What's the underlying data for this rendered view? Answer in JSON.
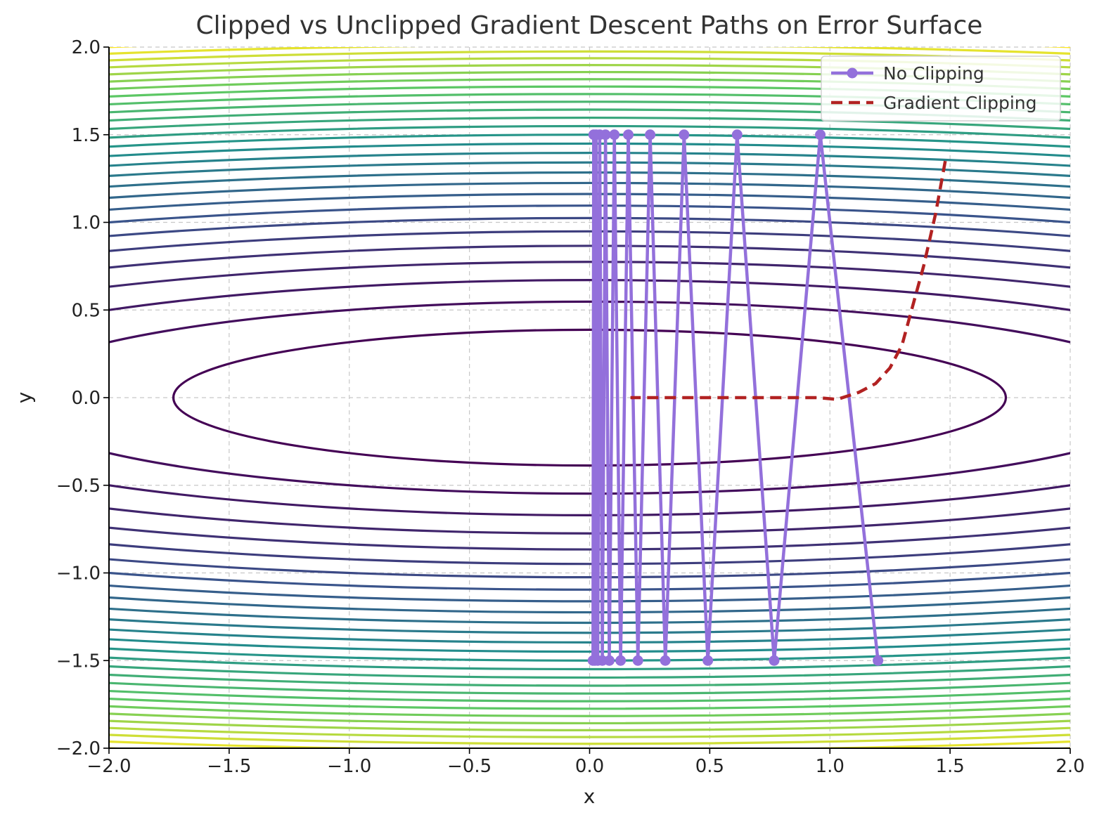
{
  "chart_data": {
    "type": "line",
    "title": "Clipped vs Unclipped Gradient Descent Paths on Error Surface",
    "xlabel": "x",
    "ylabel": "y",
    "xlim": [
      -2.0,
      2.0
    ],
    "ylim": [
      -2.0,
      2.0
    ],
    "xticks": [
      -2.0,
      -1.5,
      -1.0,
      -0.5,
      0.0,
      0.5,
      1.0,
      1.5,
      2.0
    ],
    "yticks": [
      -2.0,
      -1.5,
      -1.0,
      -0.5,
      0.0,
      0.5,
      1.0,
      1.5,
      2.0
    ],
    "xtick_labels": [
      "−2.0",
      "−1.5",
      "−1.0",
      "−0.5",
      "0.0",
      "0.5",
      "1.0",
      "1.5",
      "2.0"
    ],
    "ytick_labels": [
      "−2.0",
      "−1.5",
      "−1.0",
      "−0.5",
      "0.0",
      "0.5",
      "1.0",
      "1.5",
      "2.0"
    ],
    "grid": true,
    "legend_position": "top-right",
    "background": {
      "type": "contour",
      "function": "x^2 + 20*y^2",
      "levels": [
        3,
        6,
        9,
        12,
        15,
        18,
        21,
        24,
        27,
        30,
        33,
        36,
        39,
        42,
        45,
        48,
        51,
        54,
        57,
        60,
        63,
        66,
        69,
        72,
        75,
        78,
        81,
        84
      ],
      "colormap": [
        "#440154",
        "#3b528b",
        "#21918c",
        "#5ec962",
        "#fde725"
      ],
      "zmax": 84
    },
    "series": [
      {
        "name": "No Clipping",
        "color": "#9370db",
        "style": "solid",
        "marker": "circle",
        "points": [
          [
            1.2,
            -1.5
          ],
          [
            0.96,
            1.5
          ],
          [
            0.768,
            -1.5
          ],
          [
            0.614,
            1.5
          ],
          [
            0.492,
            -1.5
          ],
          [
            0.393,
            1.5
          ],
          [
            0.315,
            -1.5
          ],
          [
            0.252,
            1.5
          ],
          [
            0.201,
            -1.5
          ],
          [
            0.161,
            1.5
          ],
          [
            0.129,
            -1.5
          ],
          [
            0.103,
            1.5
          ],
          [
            0.082,
            -1.5
          ],
          [
            0.066,
            1.5
          ],
          [
            0.053,
            -1.5
          ],
          [
            0.042,
            1.5
          ],
          [
            0.034,
            -1.5
          ],
          [
            0.027,
            1.5
          ],
          [
            0.022,
            -1.5
          ],
          [
            0.017,
            1.5
          ],
          [
            0.014,
            -1.5
          ]
        ]
      },
      {
        "name": "Gradient Clipping",
        "color": "#b22222",
        "style": "dashed",
        "marker": "none",
        "points": [
          [
            1.48,
            1.35
          ],
          [
            1.44,
            1.05
          ],
          [
            1.39,
            0.75
          ],
          [
            1.34,
            0.5
          ],
          [
            1.3,
            0.3
          ],
          [
            1.25,
            0.17
          ],
          [
            1.19,
            0.08
          ],
          [
            1.12,
            0.03
          ],
          [
            1.03,
            -0.01
          ],
          [
            0.95,
            0.0
          ],
          [
            0.8,
            0.0
          ],
          [
            0.6,
            0.0
          ],
          [
            0.4,
            0.0
          ],
          [
            0.17,
            0.0
          ]
        ]
      }
    ]
  }
}
